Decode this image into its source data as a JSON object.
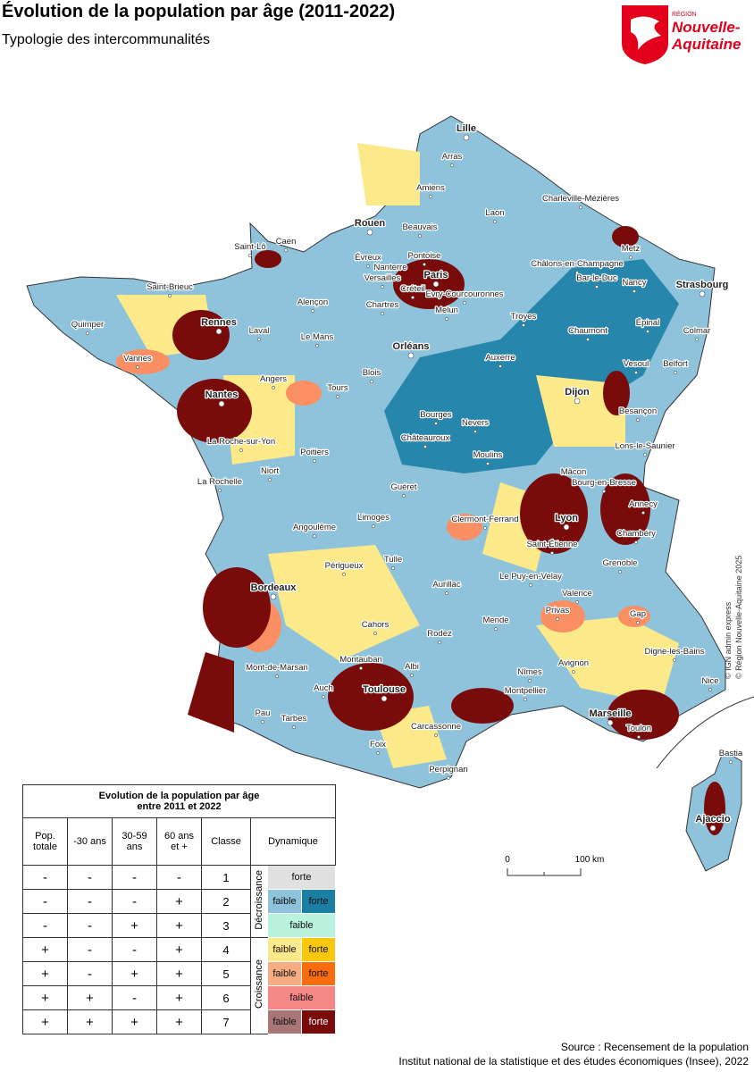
{
  "header": {
    "title": "Évolution de la population par âge (2011-2022)",
    "subtitle": "Typologie des intercommunalités"
  },
  "logo": {
    "small": "RÉGION",
    "line1": "Nouvelle-",
    "line2": "Aquitaine"
  },
  "map": {
    "cities": [
      "Lille",
      "Arras",
      "Amiens",
      "Charleville-Mézières",
      "Laon",
      "Rouen",
      "Beauvais",
      "Saint-Lô",
      "Caen",
      "Metz",
      "Évreux",
      "Pontoise",
      "Nanterre",
      "Paris",
      "Châlons-en-Champagne",
      "Versailles",
      "Créteil",
      "Evry-Courcouronnes",
      "Saint-Brieuc",
      "Strasbourg",
      "Bar-le-Duc",
      "Nancy",
      "Alençon",
      "Chartres",
      "Melun",
      "Troyes",
      "Quimper",
      "Rennes",
      "Laval",
      "Le Mans",
      "Épinal",
      "Chaumont",
      "Colmar",
      "Orléans",
      "Vannes",
      "Auxerre",
      "Vesoul",
      "Belfort",
      "Angers",
      "Blois",
      "Tours",
      "Dijon",
      "Nantes",
      "Besançon",
      "Bourges",
      "Nevers",
      "Châteauroux",
      "Lons-le-Saunier",
      "La Roche-sur-Yon",
      "Niort",
      "Poitiers",
      "Moulins",
      "La Rochelle",
      "Mâcon",
      "Bourg-en-Bresse",
      "Guéret",
      "Annecy",
      "Lyon",
      "Clermont-Ferrand",
      "Limoges",
      "Angoulême",
      "Chambéry",
      "Saint-Étienne",
      "Périgueux",
      "Tulle",
      "Grenoble",
      "Le Puy-en-Velay",
      "Bordeaux",
      "Aurillac",
      "Valence",
      "Privas",
      "Gap",
      "Mende",
      "Cahors",
      "Rodez",
      "Mont-de-Marsan",
      "Montauban",
      "Albi",
      "Digne-les-Bains",
      "Nîmes",
      "Avignon",
      "Nice",
      "Auch",
      "Toulouse",
      "Montpellier",
      "Marseille",
      "Toulon",
      "Pau",
      "Tarbes",
      "Carcassonne",
      "Foix",
      "Perpignan",
      "Bastia",
      "Ajaccio"
    ],
    "scale": [
      "0",
      "100 km"
    ],
    "credits": [
      "© IGN admin express",
      "© Région Nouvelle-Aquitaine 2025"
    ]
  },
  "legend": {
    "title": [
      "Evolution de la population par âge",
      "entre 2011 et 2022"
    ],
    "columns": [
      "Pop. totale",
      "-30 ans",
      "30-59 ans",
      "60 ans et +",
      "Classe",
      "Dynamique"
    ],
    "groups": [
      "Décroissance",
      "Croissance"
    ],
    "rows": [
      {
        "signs": [
          "-",
          "-",
          "-",
          "-"
        ],
        "classe": 1,
        "dynamique": [
          "forte"
        ]
      },
      {
        "signs": [
          "-",
          "-",
          "-",
          "+"
        ],
        "classe": 2,
        "dynamique": [
          "faible",
          "forte"
        ]
      },
      {
        "signs": [
          "-",
          "-",
          "+",
          "+"
        ],
        "classe": 3,
        "dynamique": [
          "faible"
        ]
      },
      {
        "signs": [
          "+",
          "-",
          "-",
          "+"
        ],
        "classe": 4,
        "dynamique": [
          "faible",
          "forte"
        ]
      },
      {
        "signs": [
          "+",
          "-",
          "+",
          "+"
        ],
        "classe": 5,
        "dynamique": [
          "faible",
          "forte"
        ]
      },
      {
        "signs": [
          "+",
          "+",
          "-",
          "+"
        ],
        "classe": 6,
        "dynamique": [
          "faible"
        ]
      },
      {
        "signs": [
          "+",
          "+",
          "+",
          "+"
        ],
        "classe": 7,
        "dynamique": [
          "faible",
          "forte"
        ]
      }
    ]
  },
  "source": [
    "Source : Recensement de la population",
    "Institut national de la statistique et des études économiques (Insee), 2022"
  ]
}
